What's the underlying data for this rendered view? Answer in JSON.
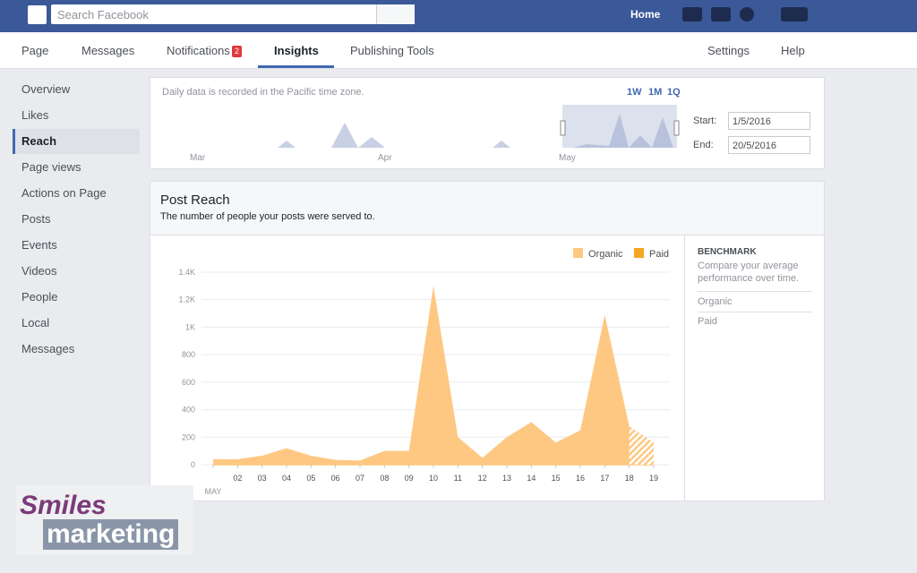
{
  "topbar": {
    "search_placeholder": "Search Facebook",
    "home": "Home"
  },
  "tabs": {
    "items": [
      "Page",
      "Messages",
      "Notifications",
      "Insights",
      "Publishing Tools"
    ],
    "notifications_badge": "2",
    "right": [
      "Settings",
      "Help"
    ]
  },
  "sidebar": {
    "items": [
      "Overview",
      "Likes",
      "Reach",
      "Page views",
      "Actions on Page",
      "Posts",
      "Events",
      "Videos",
      "People",
      "Local",
      "Messages"
    ]
  },
  "range_panel": {
    "note": "Daily data is recorded in the Pacific time zone.",
    "zoom": [
      "1W",
      "1M",
      "1Q"
    ],
    "months": [
      "Mar",
      "Apr",
      "May"
    ],
    "start_label": "Start:",
    "start": "1/5/2016",
    "end_label": "End:",
    "end": "20/5/2016"
  },
  "post_reach": {
    "title": "Post Reach",
    "subtitle": "The number of people your posts were served to.",
    "chart": {
      "type": "area",
      "month_label": "MAY",
      "categories": [
        null,
        "02",
        "03",
        "04",
        "05",
        "06",
        "07",
        "08",
        "09",
        "10",
        "11",
        "12",
        "13",
        "14",
        "15",
        "16",
        "17",
        "18",
        "19"
      ],
      "series": [
        {
          "name": "Organic",
          "color": "#fec883",
          "values": [
            40,
            40,
            65,
            120,
            65,
            35,
            30,
            100,
            100,
            1300,
            200,
            50,
            200,
            310,
            160,
            250,
            1090,
            280,
            160
          ]
        },
        {
          "name": "Paid",
          "color": "#f5a623",
          "values": [
            0,
            0,
            0,
            0,
            0,
            0,
            0,
            0,
            0,
            0,
            0,
            0,
            0,
            0,
            0,
            0,
            0,
            0,
            0
          ]
        }
      ],
      "ylim": [
        0,
        1400
      ],
      "yticks": [
        0,
        200,
        400,
        600,
        800,
        {
          "value": 1000,
          "label": "1K"
        },
        {
          "value": 1200,
          "label": "1.2K"
        },
        {
          "value": 1400,
          "label": "1.4K"
        }
      ],
      "grid": true,
      "legend": "top-right"
    },
    "benchmark": {
      "title": "BENCHMARK",
      "text": "Compare your average performance over time.",
      "items": [
        "Organic",
        "Paid"
      ]
    }
  },
  "watermark": {
    "line1": "Smiles",
    "line2": "marketing"
  }
}
